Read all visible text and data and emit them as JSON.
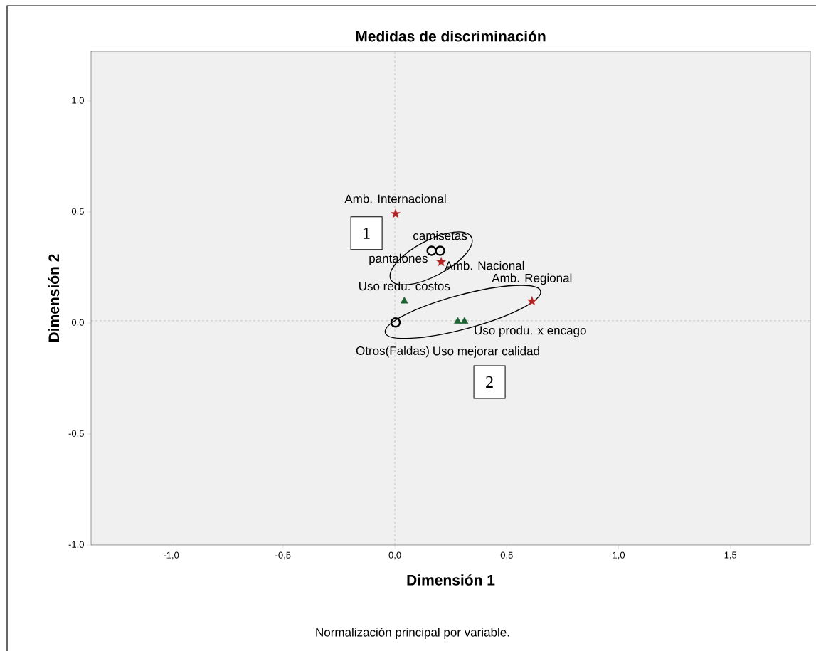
{
  "chart_data": {
    "type": "scatter",
    "title": "Medidas de discriminación",
    "xlabel": "Dimensión 1",
    "ylabel": "Dimensión 2",
    "xlim": [
      -1.358,
      1.857
    ],
    "ylim": [
      -1.0,
      1.224
    ],
    "xticks": [
      {
        "value": -1.0,
        "label": "-1,0"
      },
      {
        "value": -0.5,
        "label": "-0,5"
      },
      {
        "value": 0.0,
        "label": "0,0"
      },
      {
        "value": 0.5,
        "label": "0,5"
      },
      {
        "value": 1.0,
        "label": "1,0"
      },
      {
        "value": 1.5,
        "label": "1,5"
      }
    ],
    "yticks": [
      {
        "value": -1.0,
        "label": "-1,0"
      },
      {
        "value": -0.5,
        "label": "-0,5"
      },
      {
        "value": 0.0,
        "label": "0,0"
      },
      {
        "value": 0.5,
        "label": "0,5"
      },
      {
        "value": 1.0,
        "label": "1,0"
      }
    ],
    "series": [
      {
        "color": "#000000",
        "marker": "circle",
        "x": [
          0.164,
          0.202,
          0.003
        ],
        "values": [
          0.325,
          0.325,
          0.002
        ],
        "value_labels": [
          "pantalones",
          "camisetas",
          "Otros(Faldas)"
        ]
      },
      {
        "color": "#b22222",
        "marker": "star",
        "x": [
          0.003,
          0.207,
          0.613
        ],
        "values": [
          0.491,
          0.275,
          0.098
        ],
        "value_labels": [
          "Amb. Internacional",
          "Amb. Nacional",
          "Amb. Regional"
        ]
      },
      {
        "color": "#1e6432",
        "marker": "triangle",
        "x": [
          0.042,
          0.281,
          0.311
        ],
        "values": [
          0.098,
          0.007,
          0.007
        ],
        "value_labels": [
          "Uso redu. costos",
          "Uso mejorar calidad",
          "Uso produ. x encago"
        ]
      }
    ],
    "ref_lines": [
      {
        "axis": "x",
        "value": 0.0,
        "line_style": "dashed",
        "color": "#808080"
      },
      {
        "axis": "y",
        "value": 0.01,
        "line_style": "dashed",
        "color": "#808080"
      }
    ],
    "annotations": [
      "1",
      "2",
      "Normalización principal por variable."
    ]
  }
}
